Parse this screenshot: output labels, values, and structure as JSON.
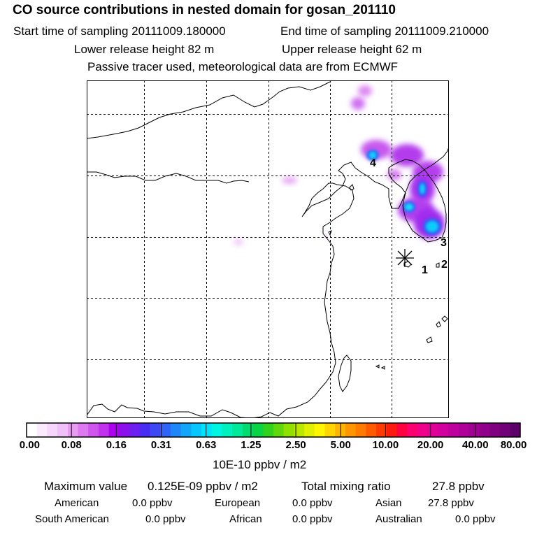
{
  "header": {
    "title": "CO  source contributions in nested domain for gosan_201110",
    "start_label": "Start time of sampling 20111009.180000",
    "end_label": "End time of sampling 20111009.210000",
    "lower_label": "Lower release height   82 m",
    "upper_label": "Upper release height   62 m",
    "tracer_note": "Passive tracer used, meteorological data are from ECMWF"
  },
  "map": {
    "receptor_icon": "asterisk-icon",
    "labels": [
      "1",
      "2",
      "3",
      "4"
    ]
  },
  "colorbar": {
    "ticks": [
      "0.00",
      "0.08",
      "0.16",
      "0.31",
      "0.63",
      "1.25",
      "2.50",
      "5.00",
      "10.00",
      "20.00",
      "40.00",
      "80.00"
    ],
    "unit": "10E-10 ppbv / m2",
    "colors": [
      "#ffffff",
      "#fbeafd",
      "#f6d6fb",
      "#f0c0f8",
      "#e79bf3",
      "#dd7af0",
      "#cf55ee",
      "#c032ec",
      "#ad00ee",
      "#8c10ee",
      "#6d1ef0",
      "#4a2bf2",
      "#3d48f4",
      "#2f66f7",
      "#1f86f9",
      "#12a6fb",
      "#06c6fd",
      "#00e3fa",
      "#00f5e0",
      "#00f0c0",
      "#00e89a",
      "#00dc70",
      "#08d444",
      "#30d21e",
      "#60d80c",
      "#90e000",
      "#bce800",
      "#e0f000",
      "#fff500",
      "#ffd400",
      "#ffb400",
      "#ff9600",
      "#ff7a00",
      "#ff5a00",
      "#ff3a00",
      "#ff1a10",
      "#ff0040",
      "#fa0070",
      "#f0008a",
      "#e00098",
      "#d0009e",
      "#c0009e",
      "#b0009a",
      "#a00092",
      "#90008a",
      "#800082",
      "#700078",
      "#5e006a"
    ]
  },
  "stats": {
    "max_label": "Maximum value",
    "max_value": "0.125E-09 ppbv / m2",
    "total_label": "Total mixing ratio",
    "total_value": "27.8 ppbv",
    "american_label": "American",
    "american_value": "0.0 ppbv",
    "european_label": "European",
    "european_value": "0.0 ppbv",
    "asian_label": "Asian",
    "asian_value": "27.8 ppbv",
    "southam_label": "South American",
    "southam_value": "0.0 ppbv",
    "african_label": "African",
    "african_value": "0.0 ppbv",
    "australian_label": "Australian",
    "australian_value": "0.0 ppbv"
  }
}
